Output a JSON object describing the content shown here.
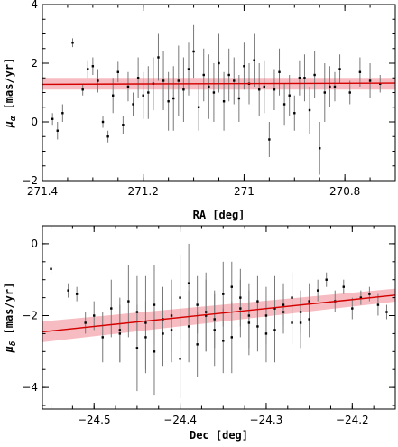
{
  "chart_data": [
    {
      "type": "scatter",
      "xlabel": "RA [deg]",
      "ylabel_main": "μ",
      "ylabel_sub": "α",
      "ylabel_unit": " [mas/yr]",
      "xlim": [
        271.4,
        270.7
      ],
      "ylim": [
        -2,
        4
      ],
      "x_inverted": true,
      "xticks": [
        271.4,
        271.2,
        271,
        270.8
      ],
      "xtick_labels": [
        "271.4",
        "271.2",
        "271",
        "270.8"
      ],
      "yticks": [
        -2,
        0,
        2,
        4
      ],
      "ytick_labels": [
        "−2",
        "0",
        "2",
        "4"
      ],
      "grid": false,
      "fit": {
        "x": [
          271.4,
          270.7
        ],
        "y": [
          1.28,
          1.32
        ],
        "band_halfwidth": 0.2,
        "color": "#d40000",
        "band_color": "#f4a0a6"
      },
      "series": [
        {
          "x": [
            271.38,
            271.37,
            271.34,
            271.31,
            271.29,
            271.28,
            271.27,
            271.25,
            271.23,
            271.22,
            271.24,
            271.36,
            271.32,
            271.3,
            271.26,
            271.21,
            271.19,
            271.17,
            271.15,
            271.13,
            271.11,
            271.09,
            271.07,
            271.05,
            271.03,
            271.01,
            270.99,
            270.97,
            270.95,
            270.93,
            270.91,
            270.89,
            270.87,
            270.85,
            270.83,
            270.81,
            270.79,
            270.77,
            270.75,
            270.73,
            271.2,
            271.16,
            271.12,
            271.08,
            271.04,
            271.0,
            270.96,
            270.92,
            270.88,
            270.84,
            271.18,
            271.14,
            271.1,
            271.06,
            271.02,
            270.98,
            270.94,
            270.9,
            270.86,
            270.82
          ],
          "y": [
            0.1,
            -0.3,
            2.7,
            1.8,
            1.4,
            0.0,
            -0.5,
            1.7,
            1.2,
            0.6,
            -0.1,
            0.3,
            1.1,
            1.9,
            0.9,
            1.5,
            1.0,
            2.2,
            0.7,
            1.4,
            1.8,
            0.5,
            1.2,
            2.0,
            1.6,
            0.8,
            1.3,
            1.1,
            -0.6,
            1.7,
            0.9,
            1.5,
            0.4,
            -0.9,
            1.2,
            1.8,
            1.0,
            1.7,
            1.4,
            1.3,
            0.9,
            1.4,
            1.1,
            1.6,
            0.7,
            1.9,
            1.2,
            0.6,
            1.5,
            1.0,
            1.3,
            0.8,
            2.4,
            1.0,
            1.4,
            2.1,
            1.1,
            0.3,
            1.6,
            1.2
          ],
          "err": [
            0.2,
            0.3,
            0.15,
            0.3,
            0.4,
            0.2,
            0.2,
            0.35,
            0.5,
            0.4,
            0.3,
            0.3,
            0.2,
            0.3,
            0.6,
            0.7,
            0.9,
            0.8,
            1.0,
            1.2,
            0.9,
            0.8,
            1.1,
            1.0,
            0.9,
            0.8,
            0.7,
            0.9,
            0.6,
            0.8,
            0.7,
            0.6,
            0.8,
            0.9,
            0.7,
            0.5,
            0.4,
            0.5,
            0.6,
            0.3,
            0.8,
            1.0,
            1.1,
            0.9,
            1.0,
            0.8,
            0.9,
            0.7,
            0.8,
            1.0,
            0.9,
            1.1,
            0.9,
            1.0,
            0.8,
            0.9,
            0.7,
            0.6,
            0.8,
            0.5
          ]
        }
      ]
    },
    {
      "type": "scatter",
      "xlabel": "Dec [deg]",
      "ylabel_main": "μ",
      "ylabel_sub": "δ",
      "ylabel_unit": " [mas/yr]",
      "xlim": [
        -24.56,
        -24.15
      ],
      "ylim": [
        -4.6,
        0.5
      ],
      "xticks": [
        -24.5,
        -24.4,
        -24.3,
        -24.2
      ],
      "xtick_labels": [
        "−24.5",
        "−24.4",
        "−24.3",
        "−24.2"
      ],
      "yticks": [
        -4,
        -2,
        0
      ],
      "ytick_labels": [
        "−4",
        "−2",
        "0"
      ],
      "grid": false,
      "fit": {
        "x": [
          -24.56,
          -24.15
        ],
        "y": [
          -2.45,
          -1.43
        ],
        "band_halfwidth": 0.18,
        "color": "#d40000",
        "band_color": "#f4a0a6"
      },
      "series": [
        {
          "x": [
            -24.55,
            -24.53,
            -24.52,
            -24.51,
            -24.5,
            -24.49,
            -24.48,
            -24.47,
            -24.46,
            -24.45,
            -24.44,
            -24.43,
            -24.42,
            -24.41,
            -24.4,
            -24.39,
            -24.38,
            -24.37,
            -24.36,
            -24.35,
            -24.34,
            -24.33,
            -24.32,
            -24.31,
            -24.3,
            -24.29,
            -24.28,
            -24.27,
            -24.26,
            -24.25,
            -24.24,
            -24.23,
            -24.22,
            -24.21,
            -24.2,
            -24.19,
            -24.18,
            -24.17,
            -24.16,
            -24.47,
            -24.45,
            -24.43,
            -24.41,
            -24.39,
            -24.37,
            -24.35,
            -24.33,
            -24.31,
            -24.29,
            -24.27,
            -24.25,
            -24.44,
            -24.42,
            -24.4,
            -24.38,
            -24.36,
            -24.34,
            -24.32,
            -24.3,
            -24.28,
            -24.26
          ],
          "y": [
            -0.7,
            -1.3,
            -1.4,
            -2.2,
            -2.0,
            -2.6,
            -1.8,
            -2.4,
            -1.6,
            -2.9,
            -2.2,
            -1.7,
            -2.5,
            -2.0,
            -1.5,
            -2.3,
            -2.8,
            -1.9,
            -2.1,
            -1.4,
            -2.6,
            -1.8,
            -2.2,
            -1.6,
            -2.0,
            -2.4,
            -1.7,
            -1.5,
            -1.9,
            -2.1,
            -1.3,
            -1.0,
            -1.6,
            -1.2,
            -1.8,
            -1.5,
            -1.4,
            -1.7,
            -1.9,
            -2.5,
            -1.9,
            -3.0,
            -2.4,
            -1.1,
            -2.0,
            -2.7,
            -1.5,
            -2.3,
            -1.8,
            -2.2,
            -1.6,
            -2.6,
            -2.1,
            -3.2,
            -1.7,
            -2.4,
            -1.2,
            -2.0,
            -2.5,
            -1.9,
            -2.2
          ],
          "err": [
            0.15,
            0.2,
            0.2,
            0.3,
            0.4,
            0.7,
            0.8,
            0.9,
            1.0,
            1.2,
            1.3,
            1.1,
            0.9,
            1.0,
            1.2,
            1.0,
            0.9,
            1.1,
            0.8,
            0.9,
            1.0,
            0.8,
            0.9,
            0.7,
            0.8,
            0.9,
            0.6,
            0.7,
            0.6,
            0.5,
            0.3,
            0.2,
            0.3,
            0.2,
            0.3,
            0.2,
            0.2,
            0.3,
            0.2,
            0.8,
            1.0,
            1.2,
            0.9,
            1.1,
            1.0,
            0.9,
            0.8,
            0.7,
            0.9,
            0.6,
            0.5,
            1.0,
            0.9,
            1.1,
            0.8,
            1.0,
            0.7,
            0.9,
            0.8,
            0.6,
            0.7
          ]
        }
      ]
    }
  ]
}
